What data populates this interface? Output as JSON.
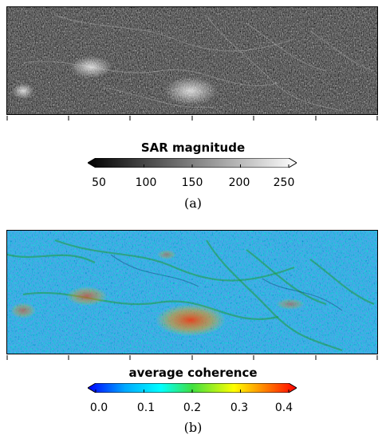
{
  "panel_a": {
    "colorbar_title": "SAR magnitude",
    "ticks": [
      "50",
      "100",
      "150",
      "200",
      "250"
    ],
    "caption": "(a)",
    "colormap": [
      "#000000",
      "#ffffff"
    ]
  },
  "panel_b": {
    "colorbar_title": "average coherence",
    "ticks": [
      "0.0",
      "0.1",
      "0.2",
      "0.3",
      "0.4"
    ],
    "caption": "(b)",
    "colormap": [
      "#0000ff",
      "#00aaff",
      "#00ffff",
      "#40e040",
      "#ffff00",
      "#ff8000",
      "#ff0000"
    ]
  }
}
